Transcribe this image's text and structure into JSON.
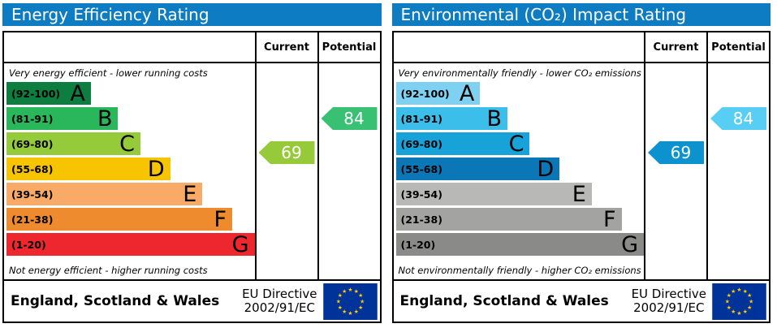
{
  "chart_data": [
    {
      "type": "bar",
      "title": "Energy Efficiency Rating",
      "categories": [
        "A (92-100)",
        "B (81-91)",
        "C (69-80)",
        "D (55-68)",
        "E (39-54)",
        "F (21-38)",
        "G (1-20)"
      ],
      "band_widths_pct": [
        34,
        45,
        54,
        66,
        79,
        91,
        100
      ],
      "series": [
        {
          "name": "Current",
          "values": [
            69
          ],
          "band": "C"
        },
        {
          "name": "Potential",
          "values": [
            84
          ],
          "band": "B"
        }
      ],
      "top_annotation": "Very energy efficient - lower running costs",
      "bottom_annotation": "Not energy efficient - higher running costs"
    },
    {
      "type": "bar",
      "title": "Environmental (CO₂) Impact Rating",
      "categories": [
        "A (92-100)",
        "B (81-91)",
        "C (69-80)",
        "D (55-68)",
        "E (39-54)",
        "F (21-38)",
        "G (1-20)"
      ],
      "band_widths_pct": [
        34,
        45,
        54,
        66,
        79,
        91,
        100
      ],
      "series": [
        {
          "name": "Current",
          "values": [
            69
          ],
          "band": "C"
        },
        {
          "name": "Potential",
          "values": [
            84
          ],
          "band": "B"
        }
      ],
      "top_annotation": "Very environmentally friendly - lower CO₂ emissions",
      "bottom_annotation": "Not environmentally friendly - higher CO₂ emissions"
    }
  ],
  "panels": [
    {
      "title": "Energy Efficiency Rating",
      "header_color": "#0d7cc3",
      "columns": {
        "current_label": "Current",
        "potential_label": "Potential"
      },
      "top_note": "Very energy efficient - lower running costs",
      "bottom_note": "Not energy efficient - higher running costs",
      "bands": [
        {
          "range": "(92-100)",
          "letter": "A",
          "color": "#0e7d40",
          "width_pct": 34
        },
        {
          "range": "(81-91)",
          "letter": "B",
          "color": "#2ab75c",
          "width_pct": 45
        },
        {
          "range": "(69-80)",
          "letter": "C",
          "color": "#95ca3b",
          "width_pct": 54
        },
        {
          "range": "(55-68)",
          "letter": "D",
          "color": "#f7c402",
          "width_pct": 66
        },
        {
          "range": "(39-54)",
          "letter": "E",
          "color": "#f9aa66",
          "width_pct": 79
        },
        {
          "range": "(21-38)",
          "letter": "F",
          "color": "#ee8b2e",
          "width_pct": 91
        },
        {
          "range": "(1-20)",
          "letter": "G",
          "color": "#ee272e",
          "width_pct": 100
        }
      ],
      "current": {
        "value": "69",
        "color": "#97ca3b"
      },
      "potential": {
        "value": "84",
        "color": "#38c172"
      },
      "footer": {
        "region": "England, Scotland & Wales",
        "directive_line1": "EU Directive",
        "directive_line2": "2002/91/EC",
        "flag_bg": "#003399",
        "star_color": "#ffcc00"
      }
    },
    {
      "title": "Environmental (CO₂) Impact Rating",
      "header_color": "#0d7cc3",
      "columns": {
        "current_label": "Current",
        "potential_label": "Potential"
      },
      "top_note": "Very environmentally friendly - lower CO₂ emissions",
      "bottom_note": "Not environmentally friendly - higher CO₂ emissions",
      "bands": [
        {
          "range": "(92-100)",
          "letter": "A",
          "color": "#7fd1f2",
          "width_pct": 34
        },
        {
          "range": "(81-91)",
          "letter": "B",
          "color": "#3bbeea",
          "width_pct": 45
        },
        {
          "range": "(69-80)",
          "letter": "C",
          "color": "#17a3d9",
          "width_pct": 54
        },
        {
          "range": "(55-68)",
          "letter": "D",
          "color": "#0b77b7",
          "width_pct": 66
        },
        {
          "range": "(39-54)",
          "letter": "E",
          "color": "#b8b8b7",
          "width_pct": 79
        },
        {
          "range": "(21-38)",
          "letter": "F",
          "color": "#a3a3a2",
          "width_pct": 91
        },
        {
          "range": "(1-20)",
          "letter": "G",
          "color": "#8a8a89",
          "width_pct": 100
        }
      ],
      "current": {
        "value": "69",
        "color": "#0c93cf"
      },
      "potential": {
        "value": "84",
        "color": "#58cef5"
      },
      "footer": {
        "region": "England, Scotland & Wales",
        "directive_line1": "EU Directive",
        "directive_line2": "2002/91/EC",
        "flag_bg": "#003399",
        "star_color": "#ffcc00"
      }
    }
  ]
}
